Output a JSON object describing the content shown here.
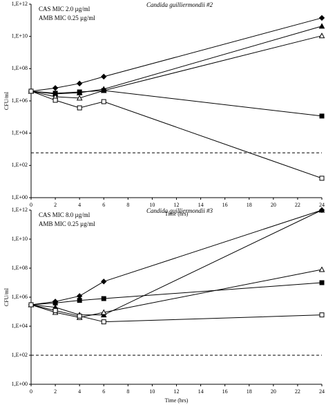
{
  "chart_data": [
    {
      "type": "line",
      "title": "Candida guilliermondii #2",
      "annotations": [
        "CAS MIC  2.0 µg/ml",
        "AMB MIC  0.25 µg/ml"
      ],
      "x_label": "Time (hrs)",
      "y_label": "CFU/ml",
      "log_scale": true,
      "x": [
        0,
        2,
        4,
        6,
        24
      ],
      "xlim": [
        0,
        24
      ],
      "xticks": [
        0,
        2,
        4,
        6,
        8,
        10,
        12,
        14,
        16,
        18,
        20,
        22,
        24
      ],
      "ylim": [
        1,
        1000000000000
      ],
      "yticks": [
        {
          "value": 1,
          "label": "1,E+00"
        },
        {
          "value": 100,
          "label": "1,E+02"
        },
        {
          "value": 10000,
          "label": "1,E+04"
        },
        {
          "value": 1000000,
          "label": "1,E+06"
        },
        {
          "value": 100000000,
          "label": "1,E+08"
        },
        {
          "value": 10000000000,
          "label": "1,E+10"
        },
        {
          "value": 1000000000000,
          "label": "1,E+12"
        }
      ],
      "reference_line": 600,
      "series": [
        {
          "marker": "diamond",
          "filled": true,
          "color": "#000000",
          "values": [
            4000000,
            6300000,
            12000000,
            32000000,
            140000000000
          ]
        },
        {
          "marker": "triangle",
          "filled": true,
          "color": "#000000",
          "values": [
            4000000,
            2700000,
            3200000,
            5400000,
            43000000000
          ]
        },
        {
          "marker": "triangle",
          "filled": false,
          "color": "#000000",
          "values": [
            4000000,
            1800000,
            1500000,
            4400000,
            11000000000
          ]
        },
        {
          "marker": "square",
          "filled": true,
          "color": "#000000",
          "values": [
            4000000,
            3000000,
            3600000,
            4400000,
            115000
          ]
        },
        {
          "marker": "square",
          "filled": false,
          "color": "#000000",
          "values": [
            4000000,
            1100000,
            370000,
            900000,
            16
          ]
        }
      ]
    },
    {
      "type": "line",
      "title": "Candida guilliermondii #3",
      "annotations": [
        "CAS MIC  8.0 µg/ml",
        "AMB MIC  0.25 µg/ml"
      ],
      "x_label": "Time (hrs)",
      "y_label": "CFU/ml",
      "log_scale": true,
      "x": [
        0,
        2,
        4,
        6,
        24
      ],
      "xlim": [
        0,
        24
      ],
      "xticks": [
        0,
        2,
        4,
        6,
        8,
        10,
        12,
        14,
        16,
        18,
        20,
        22,
        24
      ],
      "ylim": [
        1,
        1000000000000
      ],
      "yticks": [
        {
          "value": 1,
          "label": "1,E+00"
        },
        {
          "value": 100,
          "label": "1,E+02"
        },
        {
          "value": 10000,
          "label": "1,E+04"
        },
        {
          "value": 1000000,
          "label": "1,E+06"
        },
        {
          "value": 100000000,
          "label": "1,E+08"
        },
        {
          "value": 10000000000,
          "label": "1,E+10"
        },
        {
          "value": 1000000000000,
          "label": "1,E+12"
        }
      ],
      "reference_line": 100,
      "series": [
        {
          "marker": "diamond",
          "filled": true,
          "color": "#000000",
          "values": [
            300000,
            500000,
            1200000,
            12000000,
            1000000000000
          ]
        },
        {
          "marker": "triangle",
          "filled": true,
          "color": "#000000",
          "values": [
            300000,
            200000,
            60000,
            60000,
            1000000000000
          ]
        },
        {
          "marker": "triangle",
          "filled": false,
          "color": "#000000",
          "values": [
            300000,
            90000,
            40000,
            90000,
            80000000
          ]
        },
        {
          "marker": "square",
          "filled": true,
          "color": "#000000",
          "values": [
            300000,
            400000,
            600000,
            800000,
            10000000
          ]
        },
        {
          "marker": "square",
          "filled": false,
          "color": "#000000",
          "values": [
            300000,
            120000,
            50000,
            20000,
            60000
          ]
        }
      ]
    }
  ]
}
